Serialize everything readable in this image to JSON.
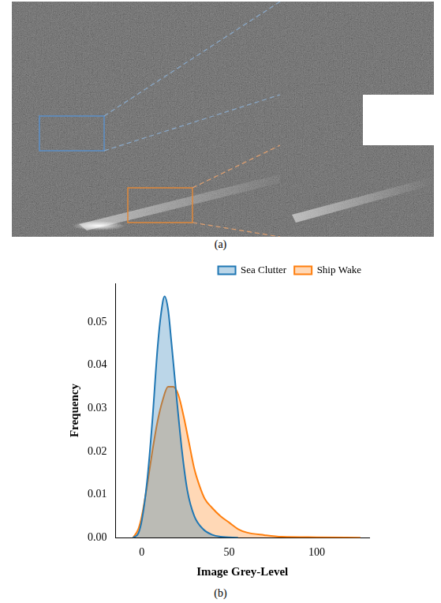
{
  "captions": [
    "(a)",
    "(b)"
  ],
  "chart_data": {
    "type": "area",
    "x_label": "Image Grey-Level",
    "y_label": "Frequency",
    "series": [
      {
        "name": "Sea Clutter",
        "color": "#1f77b4",
        "x": [
          -5,
          -2,
          0,
          3,
          6,
          9,
          11,
          13,
          15,
          17,
          20,
          23,
          26,
          30,
          35,
          40,
          45,
          55
        ],
        "values": [
          0,
          0.001,
          0.004,
          0.013,
          0.027,
          0.044,
          0.052,
          0.056,
          0.053,
          0.045,
          0.032,
          0.02,
          0.011,
          0.005,
          0.002,
          0.0007,
          0.0002,
          0
        ]
      },
      {
        "name": "Ship Wake",
        "color": "#ff7f0e",
        "x": [
          -5,
          -2,
          0,
          3,
          6,
          9,
          12,
          15,
          18,
          21,
          24,
          27,
          30,
          33,
          36,
          40,
          45,
          50,
          55,
          60,
          70,
          80,
          100,
          125
        ],
        "values": [
          0,
          0.002,
          0.005,
          0.012,
          0.02,
          0.027,
          0.032,
          0.035,
          0.035,
          0.033,
          0.028,
          0.022,
          0.016,
          0.012,
          0.009,
          0.007,
          0.005,
          0.0035,
          0.002,
          0.0012,
          0.0006,
          0.0002,
          0.0001,
          0
        ]
      }
    ],
    "xlim": [
      -15,
      130
    ],
    "xticks": [
      0,
      50,
      100
    ],
    "ylim": [
      0,
      0.059
    ],
    "yticks": [
      {
        "value": 0,
        "label": "0.00"
      },
      {
        "value": 0.01,
        "label": "0.01"
      },
      {
        "value": 0.02,
        "label": "0.02"
      },
      {
        "value": 0.03,
        "label": "0.03"
      },
      {
        "value": 0.04,
        "label": "0.04"
      },
      {
        "value": 0.05,
        "label": "0.05"
      }
    ],
    "grid": false,
    "legend": "upper right"
  }
}
